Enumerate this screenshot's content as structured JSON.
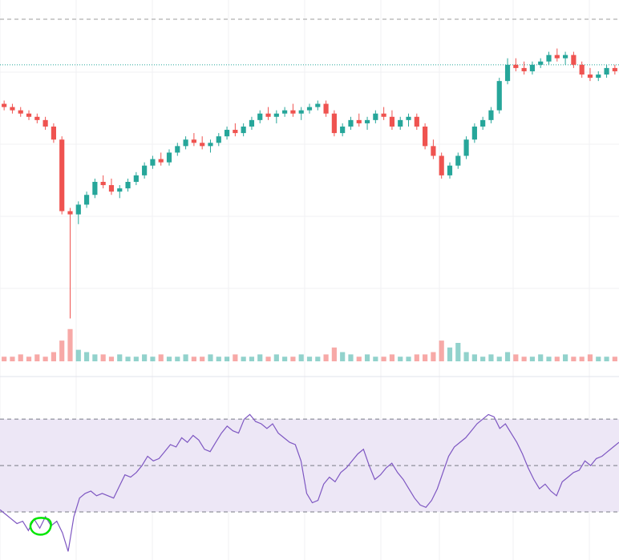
{
  "chart_data": [
    {
      "type": "candlestick",
      "panel": "price",
      "grid": true,
      "up_color": "#26a69a",
      "down_color": "#ef5350",
      "reference_lines": [
        {
          "style": "dashed",
          "color": "#9e9e9e",
          "value": 100
        },
        {
          "style": "dotted",
          "color": "#26a69a",
          "value": 86
        }
      ],
      "ylim": [
        0,
        100
      ],
      "candles": [
        {
          "o": 74,
          "h": 75,
          "l": 72,
          "c": 73
        },
        {
          "o": 73,
          "h": 74,
          "l": 71,
          "c": 72
        },
        {
          "o": 72,
          "h": 73,
          "l": 70,
          "c": 71
        },
        {
          "o": 71,
          "h": 72,
          "l": 69,
          "c": 70
        },
        {
          "o": 70,
          "h": 71,
          "l": 68,
          "c": 69
        },
        {
          "o": 69,
          "h": 70,
          "l": 66,
          "c": 67
        },
        {
          "o": 67,
          "h": 68,
          "l": 62,
          "c": 63
        },
        {
          "o": 63,
          "h": 64,
          "l": 40,
          "c": 41
        },
        {
          "o": 41,
          "h": 42,
          "l": 8,
          "c": 40
        },
        {
          "o": 40,
          "h": 44,
          "l": 37,
          "c": 43
        },
        {
          "o": 43,
          "h": 47,
          "l": 42,
          "c": 46
        },
        {
          "o": 46,
          "h": 51,
          "l": 45,
          "c": 50
        },
        {
          "o": 50,
          "h": 52,
          "l": 48,
          "c": 49
        },
        {
          "o": 49,
          "h": 51,
          "l": 46,
          "c": 47
        },
        {
          "o": 47,
          "h": 49,
          "l": 45,
          "c": 48
        },
        {
          "o": 48,
          "h": 51,
          "l": 47,
          "c": 50
        },
        {
          "o": 50,
          "h": 53,
          "l": 49,
          "c": 52
        },
        {
          "o": 52,
          "h": 56,
          "l": 51,
          "c": 55
        },
        {
          "o": 55,
          "h": 58,
          "l": 54,
          "c": 57
        },
        {
          "o": 57,
          "h": 59,
          "l": 55,
          "c": 56
        },
        {
          "o": 56,
          "h": 60,
          "l": 55,
          "c": 59
        },
        {
          "o": 59,
          "h": 62,
          "l": 58,
          "c": 61
        },
        {
          "o": 61,
          "h": 64,
          "l": 60,
          "c": 63
        },
        {
          "o": 63,
          "h": 65,
          "l": 61,
          "c": 62
        },
        {
          "o": 62,
          "h": 64,
          "l": 60,
          "c": 61
        },
        {
          "o": 61,
          "h": 63,
          "l": 59,
          "c": 62
        },
        {
          "o": 62,
          "h": 65,
          "l": 61,
          "c": 64
        },
        {
          "o": 64,
          "h": 67,
          "l": 63,
          "c": 66
        },
        {
          "o": 66,
          "h": 68,
          "l": 64,
          "c": 65
        },
        {
          "o": 65,
          "h": 68,
          "l": 64,
          "c": 67
        },
        {
          "o": 67,
          "h": 70,
          "l": 66,
          "c": 69
        },
        {
          "o": 69,
          "h": 72,
          "l": 68,
          "c": 71
        },
        {
          "o": 71,
          "h": 73,
          "l": 69,
          "c": 70
        },
        {
          "o": 70,
          "h": 72,
          "l": 68,
          "c": 71
        },
        {
          "o": 71,
          "h": 73,
          "l": 70,
          "c": 72
        },
        {
          "o": 72,
          "h": 74,
          "l": 70,
          "c": 71
        },
        {
          "o": 71,
          "h": 73,
          "l": 69,
          "c": 72
        },
        {
          "o": 72,
          "h": 74,
          "l": 71,
          "c": 73
        },
        {
          "o": 73,
          "h": 75,
          "l": 72,
          "c": 74
        },
        {
          "o": 74,
          "h": 75,
          "l": 70,
          "c": 71
        },
        {
          "o": 71,
          "h": 72,
          "l": 64,
          "c": 65
        },
        {
          "o": 65,
          "h": 68,
          "l": 64,
          "c": 67
        },
        {
          "o": 67,
          "h": 70,
          "l": 66,
          "c": 69
        },
        {
          "o": 69,
          "h": 71,
          "l": 67,
          "c": 68
        },
        {
          "o": 68,
          "h": 70,
          "l": 66,
          "c": 69
        },
        {
          "o": 69,
          "h": 72,
          "l": 68,
          "c": 71
        },
        {
          "o": 71,
          "h": 73,
          "l": 69,
          "c": 70
        },
        {
          "o": 70,
          "h": 72,
          "l": 66,
          "c": 67
        },
        {
          "o": 67,
          "h": 70,
          "l": 66,
          "c": 69
        },
        {
          "o": 69,
          "h": 71,
          "l": 67,
          "c": 70
        },
        {
          "o": 70,
          "h": 71,
          "l": 66,
          "c": 67
        },
        {
          "o": 67,
          "h": 68,
          "l": 60,
          "c": 61
        },
        {
          "o": 61,
          "h": 63,
          "l": 57,
          "c": 58
        },
        {
          "o": 58,
          "h": 59,
          "l": 51,
          "c": 52
        },
        {
          "o": 52,
          "h": 56,
          "l": 51,
          "c": 55
        },
        {
          "o": 55,
          "h": 59,
          "l": 54,
          "c": 58
        },
        {
          "o": 58,
          "h": 64,
          "l": 57,
          "c": 63
        },
        {
          "o": 63,
          "h": 68,
          "l": 62,
          "c": 67
        },
        {
          "o": 67,
          "h": 70,
          "l": 66,
          "c": 69
        },
        {
          "o": 69,
          "h": 73,
          "l": 68,
          "c": 72
        },
        {
          "o": 72,
          "h": 82,
          "l": 71,
          "c": 81
        },
        {
          "o": 81,
          "h": 88,
          "l": 80,
          "c": 86
        },
        {
          "o": 86,
          "h": 88,
          "l": 84,
          "c": 85
        },
        {
          "o": 85,
          "h": 87,
          "l": 83,
          "c": 84
        },
        {
          "o": 84,
          "h": 87,
          "l": 83,
          "c": 86
        },
        {
          "o": 86,
          "h": 88,
          "l": 85,
          "c": 87
        },
        {
          "o": 87,
          "h": 90,
          "l": 86,
          "c": 89
        },
        {
          "o": 89,
          "h": 91,
          "l": 87,
          "c": 88
        },
        {
          "o": 88,
          "h": 90,
          "l": 86,
          "c": 89
        },
        {
          "o": 89,
          "h": 90,
          "l": 85,
          "c": 86
        },
        {
          "o": 86,
          "h": 87,
          "l": 82,
          "c": 83
        },
        {
          "o": 83,
          "h": 85,
          "l": 81,
          "c": 82
        },
        {
          "o": 82,
          "h": 84,
          "l": 81,
          "c": 83
        },
        {
          "o": 83,
          "h": 86,
          "l": 82,
          "c": 85
        },
        {
          "o": 85,
          "h": 86,
          "l": 83,
          "c": 84
        }
      ]
    },
    {
      "type": "bar",
      "panel": "volume",
      "values": [
        2,
        2,
        3,
        2,
        3,
        2,
        4,
        9,
        14,
        5,
        4,
        3,
        3,
        2,
        3,
        2,
        2,
        3,
        2,
        3,
        2,
        2,
        3,
        2,
        2,
        3,
        2,
        2,
        3,
        2,
        2,
        3,
        2,
        3,
        2,
        2,
        3,
        2,
        2,
        3,
        6,
        4,
        3,
        2,
        3,
        2,
        2,
        3,
        2,
        2,
        3,
        3,
        4,
        9,
        6,
        8,
        4,
        3,
        2,
        3,
        2,
        4,
        3,
        2,
        2,
        3,
        2,
        2,
        3,
        2,
        2,
        3,
        2,
        2,
        2
      ],
      "ylim": [
        0,
        16
      ]
    },
    {
      "type": "line",
      "panel": "oscillator",
      "line_color": "#7e57c2",
      "band": {
        "lower": 30,
        "upper": 70,
        "mid": 50,
        "fill": "#ede7f6"
      },
      "ylim": [
        10,
        78
      ],
      "values": [
        31,
        29,
        27,
        25,
        26,
        22,
        27,
        23,
        28,
        24,
        26,
        21,
        13,
        28,
        36,
        38,
        39,
        37,
        38,
        37,
        36,
        41,
        46,
        45,
        47,
        50,
        54,
        52,
        53,
        56,
        59,
        58,
        62,
        60,
        63,
        61,
        57,
        56,
        60,
        64,
        67,
        65,
        64,
        70,
        72,
        69,
        68,
        66,
        68,
        64,
        62,
        60,
        59,
        52,
        38,
        34,
        35,
        42,
        45,
        43,
        47,
        49,
        52,
        55,
        57,
        50,
        44,
        46,
        49,
        51,
        47,
        44,
        40,
        36,
        33,
        32,
        35,
        40,
        47,
        54,
        58,
        60,
        62,
        65,
        68,
        70,
        72,
        71,
        66,
        68,
        64,
        60,
        55,
        49,
        44,
        40,
        42,
        39,
        37,
        43,
        45,
        47,
        48,
        52,
        50,
        53,
        54,
        56,
        58,
        60
      ]
    }
  ]
}
